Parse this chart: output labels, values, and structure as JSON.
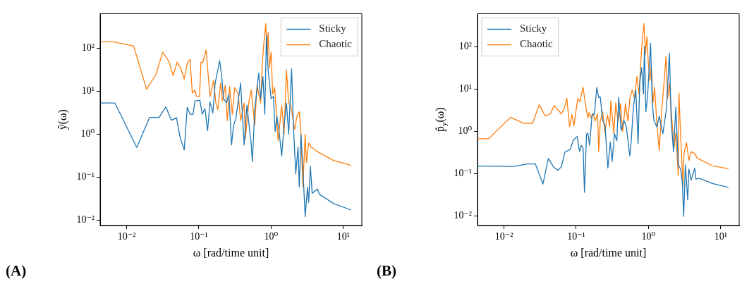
{
  "chart_data": [
    {
      "type": "line",
      "xlabel": "ω [rad/time unit]",
      "ylabel": "ŷ(ω)",
      "log": "xy",
      "legend": "top right",
      "grid": false,
      "annotations": [
        "(A)"
      ],
      "xlim": [
        0.0043,
        18
      ],
      "ylim": [
        0.0075,
        630
      ],
      "xticks": [
        {
          "value": 0.01,
          "label": "10⁻²"
        },
        {
          "value": 0.1,
          "label": "10⁻¹"
        },
        {
          "value": 1,
          "label": "10⁰"
        },
        {
          "value": 10,
          "label": "10¹"
        }
      ],
      "yticks": [
        {
          "value": 0.01,
          "label": "10⁻²"
        },
        {
          "value": 0.1,
          "label": "10⁻¹"
        },
        {
          "value": 1,
          "label": "10⁰"
        },
        {
          "value": 10,
          "label": "10¹"
        },
        {
          "value": 100,
          "label": "10²"
        }
      ],
      "series": [
        {
          "name": "Sticky",
          "color": "#1f77b4",
          "x": [
            0.0043,
            0.00687,
            0.0138,
            0.0208,
            0.0281,
            0.0349,
            0.0415,
            0.049,
            0.0551,
            0.0627,
            0.069,
            0.0755,
            0.083,
            0.0883,
            0.1035,
            0.111,
            0.121,
            0.132,
            0.1426,
            0.156,
            0.168,
            0.194,
            0.207,
            0.219,
            0.241,
            0.26,
            0.283,
            0.302,
            0.325,
            0.378,
            0.4,
            0.423,
            0.462,
            0.53,
            0.55,
            0.593,
            0.673,
            0.715,
            0.77,
            0.817,
            0.861,
            0.908,
            1.0,
            1.077,
            1.137,
            1.2,
            1.3,
            1.4,
            1.51,
            1.63,
            1.75,
            1.92,
            2.04,
            2.19,
            2.36,
            2.45,
            2.59,
            2.75,
            2.96,
            3.19,
            3.31,
            3.49,
            3.7,
            4.0,
            4.38,
            4.64,
            7.27,
            12.8
          ],
          "values": [
            5.3,
            5.3,
            0.49,
            2.45,
            2.45,
            4.3,
            2.1,
            2.4,
            0.82,
            0.43,
            4.2,
            2.9,
            2.9,
            5.9,
            6.1,
            2.9,
            3.9,
            1.2,
            5.6,
            3.1,
            15.3,
            51,
            21.8,
            6.7,
            5.3,
            8.5,
            0.56,
            1.6,
            2.3,
            15.3,
            2.9,
            0.56,
            4.7,
            0.59,
            0.23,
            3.7,
            26,
            6.7,
            21.8,
            2.9,
            200,
            31,
            6.7,
            7.5,
            1.14,
            2.6,
            1.0,
            0.31,
            1.6,
            5.3,
            1.0,
            33,
            1.44,
            0.12,
            0.5,
            0.059,
            1.0,
            0.153,
            0.012,
            0.059,
            0.026,
            0.18,
            0.042,
            0.047,
            0.053,
            0.04,
            0.0245,
            0.0172
          ]
        },
        {
          "name": "Chaotic",
          "color": "#ff7f0e",
          "x": [
            0.0043,
            0.00638,
            0.0125,
            0.0189,
            0.0255,
            0.0315,
            0.038,
            0.044,
            0.05,
            0.056,
            0.0627,
            0.069,
            0.0755,
            0.081,
            0.0877,
            0.093,
            0.102,
            0.107,
            0.113,
            0.126,
            0.132,
            0.1426,
            0.16,
            0.172,
            0.183,
            0.2,
            0.212,
            0.232,
            0.247,
            0.266,
            0.29,
            0.313,
            0.35,
            0.378,
            0.423,
            0.44,
            0.49,
            0.53,
            0.593,
            0.638,
            0.715,
            0.759,
            0.798,
            0.84,
            0.88,
            0.908,
            0.948,
            1.0,
            1.05,
            1.12,
            1.25,
            1.4,
            1.51,
            1.63,
            1.75,
            1.89,
            2.11,
            2.28,
            2.45,
            2.59,
            2.75,
            2.96,
            3.08,
            3.31,
            3.57,
            4.0,
            4.3,
            7.27,
            12.8
          ],
          "values": [
            141,
            141,
            111,
            11,
            24.5,
            80,
            51,
            23,
            47,
            34,
            19,
            44,
            55,
            9,
            10.5,
            7.5,
            7.4,
            47,
            46,
            90,
            34,
            7.5,
            17.6,
            5.3,
            3.7,
            15.3,
            5.9,
            13.6,
            2.05,
            12.8,
            2.9,
            12.1,
            8.5,
            2.05,
            5.3,
            0.8,
            5.3,
            10.7,
            1.6,
            13.6,
            5.3,
            50,
            144,
            371,
            71,
            231,
            35,
            80,
            8.5,
            12.1,
            0.71,
            4.7,
            1.0,
            31,
            5.3,
            4.3,
            1.28,
            2.6,
            3.3,
            1.0,
            0.059,
            1.0,
            0.218,
            0.63,
            0.5,
            0.44,
            0.4,
            0.245,
            0.187
          ]
        }
      ]
    },
    {
      "type": "line",
      "xlabel": "ω [rad/time unit]",
      "ylabel": "p̂$_{y}$(ω)",
      "log": "xy",
      "legend": "top left",
      "grid": false,
      "annotations": [
        "(B)"
      ],
      "xlim": [
        0.0043,
        18
      ],
      "ylim": [
        0.006,
        600
      ],
      "xticks": [
        {
          "value": 0.01,
          "label": "10⁻²"
        },
        {
          "value": 0.1,
          "label": "10⁻¹"
        },
        {
          "value": 1,
          "label": "10⁰"
        },
        {
          "value": 10,
          "label": "10¹"
        }
      ],
      "yticks": [
        {
          "value": 0.01,
          "label": "10⁻²"
        },
        {
          "value": 0.1,
          "label": "10⁻¹"
        },
        {
          "value": 1,
          "label": "10⁰"
        },
        {
          "value": 10,
          "label": "10¹"
        },
        {
          "value": 100,
          "label": "10²"
        }
      ],
      "series": [
        {
          "name": "Sticky",
          "color": "#1f77b4",
          "x": [
            0.0043,
            0.0138,
            0.0209,
            0.0272,
            0.0346,
            0.0411,
            0.0489,
            0.0556,
            0.0622,
            0.0697,
            0.0828,
            0.0907,
            0.103,
            0.111,
            0.118,
            0.1245,
            0.13,
            0.139,
            0.145,
            0.153,
            0.166,
            0.179,
            0.192,
            0.205,
            0.215,
            0.232,
            0.25,
            0.274,
            0.296,
            0.314,
            0.338,
            0.365,
            0.387,
            0.418,
            0.457,
            0.493,
            0.552,
            0.575,
            0.618,
            0.667,
            0.718,
            0.757,
            0.803,
            0.853,
            0.879,
            0.92,
            0.97,
            1.07,
            1.127,
            1.19,
            1.31,
            1.41,
            1.58,
            1.77,
            1.95,
            2.06,
            2.22,
            2.39,
            2.58,
            2.78,
            2.94,
            3.07,
            3.24,
            3.49,
            3.62,
            3.9,
            4.37,
            4.54,
            5.08,
            7.67,
            12.8
          ],
          "values": [
            0.152,
            0.149,
            0.171,
            0.17,
            0.057,
            0.229,
            0.142,
            0.121,
            0.146,
            0.324,
            0.378,
            0.61,
            0.76,
            0.336,
            0.47,
            0.4,
            0.0365,
            0.86,
            0.9,
            0.47,
            2.57,
            2.55,
            10.9,
            6.3,
            6.5,
            1.8,
            1.4,
            0.136,
            0.556,
            0.196,
            0.88,
            0.6,
            6.3,
            1.05,
            1.8,
            1.3,
            0.264,
            0.55,
            3.7,
            9.6,
            0.51,
            13.8,
            32,
            7.6,
            100,
            2.9,
            6.5,
            120,
            4.7,
            1.8,
            1.26,
            2.3,
            0.875,
            3.3,
            70,
            1.8,
            0.336,
            3.7,
            0.164,
            0.129,
            0.063,
            0.0098,
            0.164,
            0.024,
            0.129,
            0.0706,
            0.136,
            0.075,
            0.078,
            0.059,
            0.0475
          ]
        },
        {
          "name": "Chaotic",
          "color": "#ff7f0e",
          "x": [
            0.0043,
            0.00612,
            0.0123,
            0.0187,
            0.0248,
            0.0309,
            0.0373,
            0.0437,
            0.0497,
            0.0622,
            0.0686,
            0.074,
            0.081,
            0.0873,
            0.0927,
            0.105,
            0.112,
            0.124,
            0.132,
            0.1445,
            0.151,
            0.159,
            0.172,
            0.182,
            0.197,
            0.205,
            0.215,
            0.232,
            0.25,
            0.27,
            0.29,
            0.302,
            0.331,
            0.352,
            0.38,
            0.41,
            0.44,
            0.48,
            0.52,
            0.552,
            0.596,
            0.64,
            0.692,
            0.74,
            0.785,
            0.822,
            0.865,
            0.908,
            0.951,
            0.994,
            1.047,
            1.09,
            1.153,
            1.216,
            1.31,
            1.41,
            1.52,
            1.64,
            1.75,
            1.84,
            1.95,
            2.11,
            2.27,
            2.4,
            2.58,
            2.64,
            2.78,
            3.0,
            3.1,
            3.36,
            3.62,
            3.9,
            4.37,
            4.72,
            7.67,
            12.8
          ],
          "values": [
            0.67,
            0.67,
            2.15,
            1.56,
            1.55,
            4.3,
            2.3,
            2.6,
            4.1,
            2.6,
            3.5,
            6.1,
            1.3,
            2.5,
            1.35,
            6.0,
            5.0,
            11.1,
            5.3,
            2.07,
            2.8,
            2.07,
            2.57,
            1.75,
            2.57,
            0.336,
            1.75,
            2.9,
            0.93,
            2.43,
            1.3,
            5.3,
            0.88,
            4.7,
            1.75,
            4.5,
            0.99,
            4.5,
            1.75,
            6.0,
            9.6,
            6.0,
            19.8,
            7.6,
            46,
            152,
            352,
            66,
            171,
            41,
            15.6,
            36,
            4.7,
            10.9,
            1.42,
            0.356,
            2.9,
            13.8,
            58,
            6.0,
            13.8,
            1.8,
            0.43,
            0.9,
            0.0897,
            8.05,
            0.88,
            0.0524,
            0.3,
            0.54,
            0.207,
            0.33,
            0.3,
            0.234,
            0.154,
            0.132
          ]
        }
      ]
    }
  ]
}
